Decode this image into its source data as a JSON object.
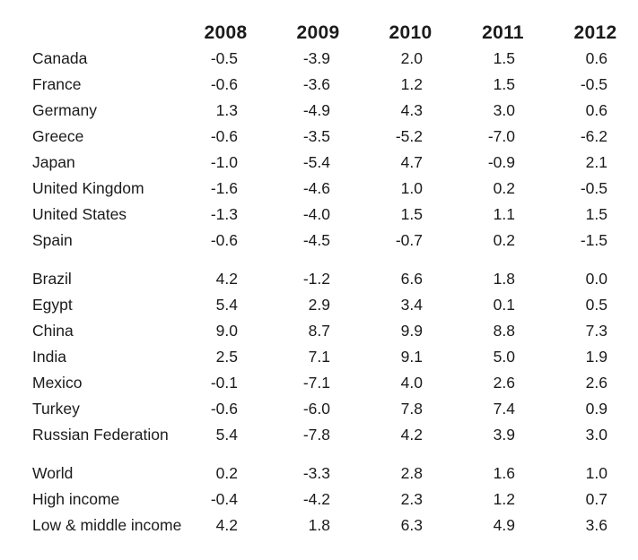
{
  "table": {
    "columns": [
      "2008",
      "2009",
      "2010",
      "2011",
      "2012"
    ],
    "groups": [
      {
        "name": "high-income-countries",
        "rows": [
          {
            "label": "Canada",
            "values": [
              "-0.5",
              "-3.9",
              "2.0",
              "1.5",
              "0.6"
            ]
          },
          {
            "label": "France",
            "values": [
              "-0.6",
              "-3.6",
              "1.2",
              "1.5",
              "-0.5"
            ]
          },
          {
            "label": "Germany",
            "values": [
              "1.3",
              "-4.9",
              "4.3",
              "3.0",
              "0.6"
            ]
          },
          {
            "label": "Greece",
            "values": [
              "-0.6",
              "-3.5",
              "-5.2",
              "-7.0",
              "-6.2"
            ]
          },
          {
            "label": "Japan",
            "values": [
              "-1.0",
              "-5.4",
              "4.7",
              "-0.9",
              "2.1"
            ]
          },
          {
            "label": "United Kingdom",
            "values": [
              "-1.6",
              "-4.6",
              "1.0",
              "0.2",
              "-0.5"
            ]
          },
          {
            "label": "United States",
            "values": [
              "-1.3",
              "-4.0",
              "1.5",
              "1.1",
              "1.5"
            ]
          },
          {
            "label": "Spain",
            "values": [
              "-0.6",
              "-4.5",
              "-0.7",
              "0.2",
              "-1.5"
            ]
          }
        ]
      },
      {
        "name": "emerging-economies",
        "rows": [
          {
            "label": "Brazil",
            "values": [
              "4.2",
              "-1.2",
              "6.6",
              "1.8",
              "0.0"
            ]
          },
          {
            "label": "Egypt",
            "values": [
              "5.4",
              "2.9",
              "3.4",
              "0.1",
              "0.5"
            ]
          },
          {
            "label": "China",
            "values": [
              "9.0",
              "8.7",
              "9.9",
              "8.8",
              "7.3"
            ]
          },
          {
            "label": "India",
            "values": [
              "2.5",
              "7.1",
              "9.1",
              "5.0",
              "1.9"
            ]
          },
          {
            "label": "Mexico",
            "values": [
              "-0.1",
              "-7.1",
              "4.0",
              "2.6",
              "2.6"
            ]
          },
          {
            "label": "Turkey",
            "values": [
              "-0.6",
              "-6.0",
              "7.8",
              "7.4",
              "0.9"
            ]
          },
          {
            "label": "Russian Federation",
            "values": [
              "5.4",
              "-7.8",
              "4.2",
              "3.9",
              "3.0"
            ]
          }
        ]
      },
      {
        "name": "aggregates",
        "rows": [
          {
            "label": "World",
            "values": [
              "0.2",
              "-3.3",
              "2.8",
              "1.6",
              "1.0"
            ]
          },
          {
            "label": "High income",
            "values": [
              "-0.4",
              "-4.2",
              "2.3",
              "1.2",
              "0.7"
            ]
          },
          {
            "label": "Low & middle income",
            "values": [
              "4.2",
              "1.8",
              "6.3",
              "4.9",
              "3.6"
            ]
          }
        ]
      }
    ]
  },
  "colors": {
    "text": "#1b1b1b",
    "background": "#ffffff"
  }
}
